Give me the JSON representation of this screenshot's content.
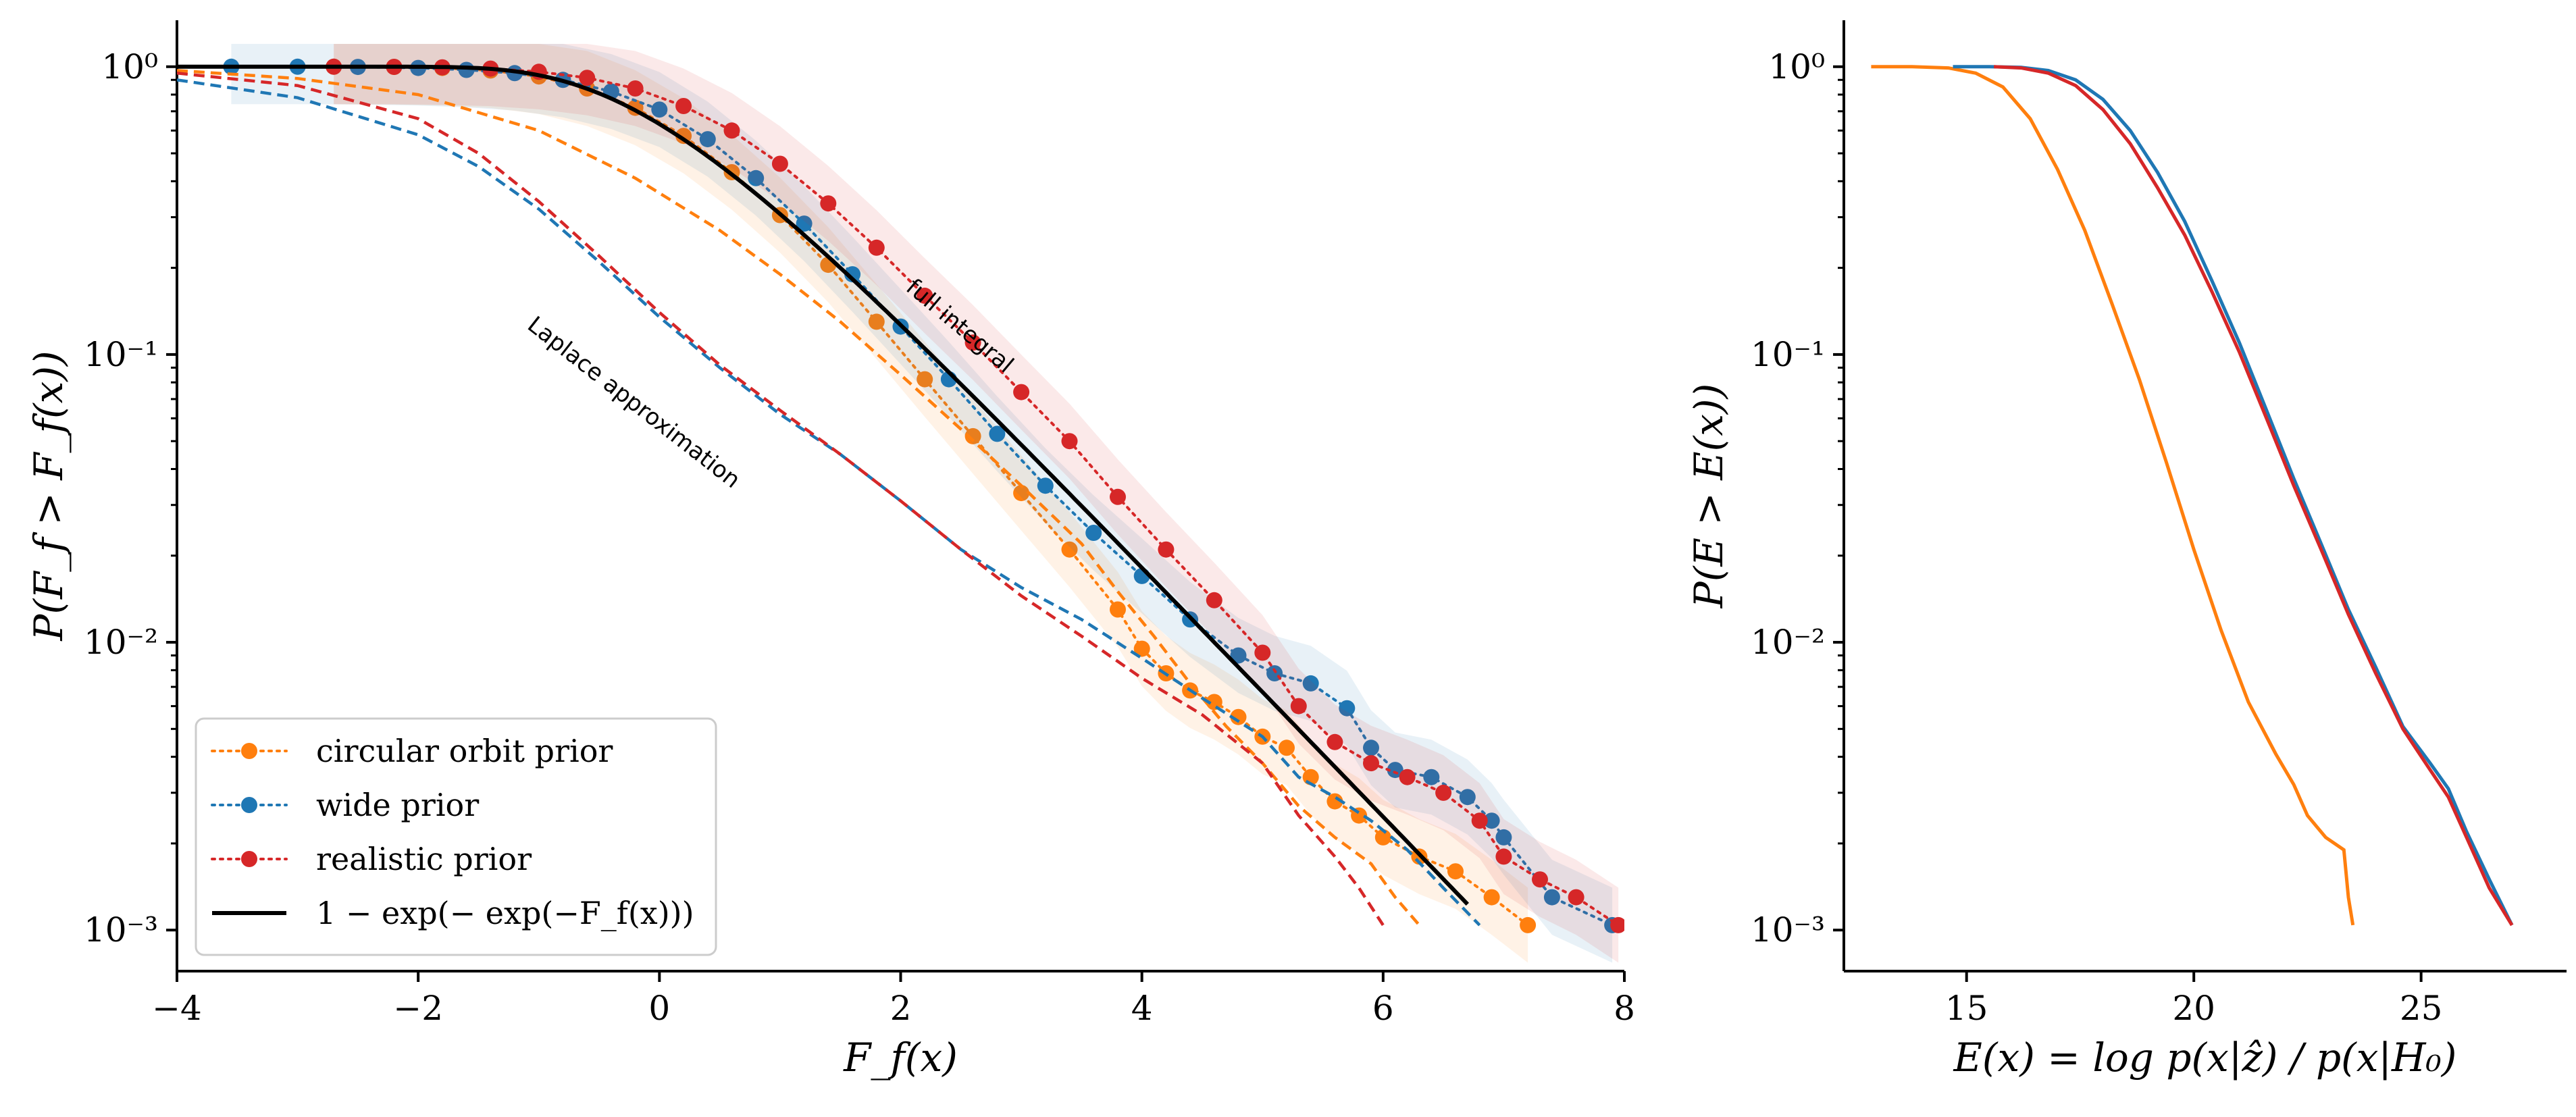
{
  "chart_data": [
    {
      "type": "line",
      "panel": "left",
      "title": "",
      "xlabel": "F_f(x)",
      "ylabel": "P(F_f > F_f(x))",
      "yscale": "log",
      "xlim": [
        -4,
        8
      ],
      "ylim": [
        0.00072,
        1.45
      ],
      "xticks": [
        -4,
        -2,
        0,
        2,
        4,
        6,
        8
      ],
      "xtick_labels": [
        "−4",
        "−2",
        "0",
        "2",
        "4",
        "6",
        "8"
      ],
      "yticks": [
        1,
        0.1,
        0.01,
        0.001
      ],
      "ytick_labels": [
        "10⁰",
        "10⁻¹",
        "10⁻²",
        "10⁻³"
      ],
      "annotations": [
        {
          "text": "full integral",
          "x": 2.45,
          "y": 0.12,
          "rotation_deg": 40
        },
        {
          "text": "Laplace approximation",
          "x": -0.25,
          "y": 0.065,
          "rotation_deg": 38
        }
      ],
      "legend": {
        "location": "lower-left",
        "entries": [
          {
            "label": "circular orbit prior",
            "color": "#ff7f0e",
            "style": "dotted-marker"
          },
          {
            "label": "wide prior",
            "color": "#1f77b4",
            "style": "dotted-marker"
          },
          {
            "label": "realistic prior",
            "color": "#d62728",
            "style": "dotted-marker"
          },
          {
            "label": "1 − exp(− exp(−F_f(x)))",
            "color": "#000000",
            "style": "solid"
          }
        ]
      },
      "series": [
        {
          "name": "circular orbit prior",
          "color": "#ff7f0e",
          "style": "markers",
          "x": [
            -2.7,
            -2.2,
            -1.8,
            -1.4,
            -1.0,
            -0.6,
            -0.2,
            0.2,
            0.6,
            1.0,
            1.4,
            1.8,
            2.2,
            2.6,
            3.0,
            3.4,
            3.8,
            4.0,
            4.2,
            4.4,
            4.6,
            4.8,
            5.0,
            5.2,
            5.4,
            5.6,
            5.8,
            6.0,
            6.3,
            6.6,
            6.9,
            7.2
          ],
          "y": [
            1.0,
            0.998,
            0.99,
            0.97,
            0.925,
            0.84,
            0.72,
            0.575,
            0.43,
            0.305,
            0.205,
            0.13,
            0.082,
            0.052,
            0.033,
            0.021,
            0.013,
            0.0095,
            0.0078,
            0.0068,
            0.0062,
            0.0055,
            0.0047,
            0.0043,
            0.0034,
            0.0028,
            0.0025,
            0.0021,
            0.0018,
            0.0016,
            0.0013,
            0.00104
          ]
        },
        {
          "name": "wide prior",
          "color": "#1f77b4",
          "style": "markers",
          "x": [
            -3.55,
            -3.0,
            -2.5,
            -2.0,
            -1.6,
            -1.2,
            -0.8,
            -0.4,
            0.0,
            0.4,
            0.8,
            1.2,
            1.6,
            2.0,
            2.4,
            2.8,
            3.2,
            3.6,
            4.0,
            4.4,
            4.8,
            5.1,
            5.4,
            5.7,
            5.9,
            6.1,
            6.4,
            6.7,
            6.9,
            7.0,
            7.4,
            7.9
          ],
          "y": [
            1.0,
            1.0,
            0.998,
            0.99,
            0.975,
            0.95,
            0.9,
            0.82,
            0.71,
            0.56,
            0.41,
            0.285,
            0.19,
            0.125,
            0.082,
            0.053,
            0.035,
            0.024,
            0.017,
            0.012,
            0.009,
            0.0078,
            0.0072,
            0.0059,
            0.0043,
            0.0036,
            0.0034,
            0.0029,
            0.0024,
            0.0021,
            0.0013,
            0.00104
          ]
        },
        {
          "name": "realistic prior",
          "color": "#d62728",
          "style": "markers",
          "x": [
            -2.7,
            -2.2,
            -1.8,
            -1.4,
            -1.0,
            -0.6,
            -0.2,
            0.2,
            0.6,
            1.0,
            1.4,
            1.8,
            2.2,
            2.6,
            3.0,
            3.4,
            3.8,
            4.2,
            4.6,
            5.0,
            5.3,
            5.6,
            5.9,
            6.2,
            6.5,
            6.8,
            7.0,
            7.3,
            7.6,
            7.95
          ],
          "y": [
            1.0,
            0.999,
            0.995,
            0.985,
            0.96,
            0.915,
            0.84,
            0.73,
            0.6,
            0.46,
            0.335,
            0.235,
            0.16,
            0.11,
            0.074,
            0.05,
            0.032,
            0.021,
            0.014,
            0.0092,
            0.006,
            0.0045,
            0.0038,
            0.0034,
            0.003,
            0.0024,
            0.0018,
            0.0015,
            0.0013,
            0.00104
          ]
        },
        {
          "name": "circular orbit prior (Laplace approximation)",
          "color": "#ff7f0e",
          "style": "dashed",
          "x": [
            -4.0,
            -3.0,
            -2.0,
            -1.0,
            -0.2,
            0.5,
            1.0,
            1.5,
            2.0,
            2.5,
            3.0,
            3.5,
            3.8,
            4.1,
            4.4,
            4.7,
            5.0,
            5.3,
            5.6,
            5.9,
            6.1,
            6.3
          ],
          "y": [
            0.97,
            0.91,
            0.8,
            0.6,
            0.41,
            0.27,
            0.19,
            0.13,
            0.085,
            0.055,
            0.035,
            0.022,
            0.015,
            0.0105,
            0.0072,
            0.0051,
            0.0038,
            0.0027,
            0.0021,
            0.0017,
            0.0013,
            0.00104
          ]
        },
        {
          "name": "wide prior (Laplace approximation)",
          "color": "#1f77b4",
          "style": "dashed",
          "x": [
            -4.0,
            -3.0,
            -2.0,
            -1.5,
            -1.0,
            -0.5,
            0.0,
            0.5,
            1.0,
            1.5,
            2.0,
            2.5,
            3.0,
            3.5,
            4.0,
            4.5,
            5.0,
            5.3,
            5.6,
            5.9,
            6.2,
            6.5,
            6.8
          ],
          "y": [
            0.9,
            0.78,
            0.58,
            0.45,
            0.32,
            0.21,
            0.135,
            0.09,
            0.062,
            0.045,
            0.031,
            0.021,
            0.0155,
            0.012,
            0.0088,
            0.0064,
            0.0047,
            0.0034,
            0.0029,
            0.0024,
            0.0019,
            0.0014,
            0.00104
          ]
        },
        {
          "name": "realistic prior (Laplace approximation)",
          "color": "#d62728",
          "style": "dashed",
          "x": [
            -4.0,
            -3.0,
            -2.0,
            -1.5,
            -1.0,
            -0.5,
            0.0,
            0.5,
            1.0,
            1.5,
            2.0,
            2.5,
            3.0,
            3.5,
            4.0,
            4.5,
            5.0,
            5.3,
            5.6,
            5.8,
            6.0
          ],
          "y": [
            0.95,
            0.86,
            0.66,
            0.5,
            0.34,
            0.22,
            0.14,
            0.092,
            0.064,
            0.045,
            0.031,
            0.021,
            0.0145,
            0.0105,
            0.0075,
            0.0056,
            0.0038,
            0.0025,
            0.0018,
            0.0014,
            0.00104
          ]
        },
        {
          "name": "1 − exp(− exp(−F_f(x)))",
          "color": "#000000",
          "style": "solid",
          "x_range": [
            -4,
            6.7
          ],
          "function": "gumbel_survival"
        }
      ]
    },
    {
      "type": "line",
      "panel": "right",
      "title": "",
      "xlabel": "E(x) = log p(x|ẑ) / p(x|H₀)",
      "ylabel": "P(E > E(x))",
      "yscale": "log",
      "xlim": [
        12.3,
        28.2
      ],
      "ylim": [
        0.00072,
        1.45
      ],
      "xticks": [
        15,
        20,
        25
      ],
      "xtick_labels": [
        "15",
        "20",
        "25"
      ],
      "yticks": [
        1,
        0.1,
        0.01,
        0.001
      ],
      "ytick_labels": [
        "10⁰",
        "10⁻¹",
        "10⁻²",
        "10⁻³"
      ],
      "series": [
        {
          "name": "circular orbit prior",
          "color": "#ff7f0e",
          "x": [
            12.9,
            13.8,
            14.6,
            15.2,
            15.8,
            16.4,
            17.0,
            17.6,
            18.2,
            18.8,
            19.4,
            20.0,
            20.6,
            21.2,
            21.8,
            22.2,
            22.5,
            22.9,
            23.3,
            23.4,
            23.5
          ],
          "y": [
            1.0,
            1.0,
            0.99,
            0.95,
            0.85,
            0.66,
            0.44,
            0.27,
            0.15,
            0.082,
            0.042,
            0.021,
            0.011,
            0.0062,
            0.0041,
            0.0032,
            0.0025,
            0.0021,
            0.0019,
            0.0013,
            0.00104
          ]
        },
        {
          "name": "wide prior",
          "color": "#1f77b4",
          "x": [
            14.7,
            15.5,
            16.2,
            16.8,
            17.4,
            18.0,
            18.6,
            19.2,
            19.8,
            20.4,
            21.0,
            21.6,
            22.2,
            22.8,
            23.4,
            24.0,
            24.6,
            25.2,
            25.6,
            26.0,
            26.5,
            27.0
          ],
          "y": [
            1.0,
            1.0,
            0.995,
            0.97,
            0.9,
            0.77,
            0.6,
            0.43,
            0.29,
            0.18,
            0.11,
            0.064,
            0.037,
            0.022,
            0.013,
            0.0082,
            0.0051,
            0.0038,
            0.0031,
            0.0022,
            0.0015,
            0.00104
          ]
        },
        {
          "name": "realistic prior",
          "color": "#d62728",
          "x": [
            15.6,
            16.2,
            16.8,
            17.4,
            18.0,
            18.6,
            19.2,
            19.8,
            20.4,
            21.0,
            21.6,
            22.2,
            22.8,
            23.4,
            24.0,
            24.6,
            25.2,
            25.6,
            26.0,
            26.5,
            27.0
          ],
          "y": [
            1.0,
            0.99,
            0.95,
            0.86,
            0.71,
            0.54,
            0.38,
            0.26,
            0.165,
            0.102,
            0.06,
            0.035,
            0.021,
            0.0125,
            0.0078,
            0.005,
            0.0036,
            0.0029,
            0.0021,
            0.0014,
            0.00104
          ]
        }
      ]
    }
  ]
}
